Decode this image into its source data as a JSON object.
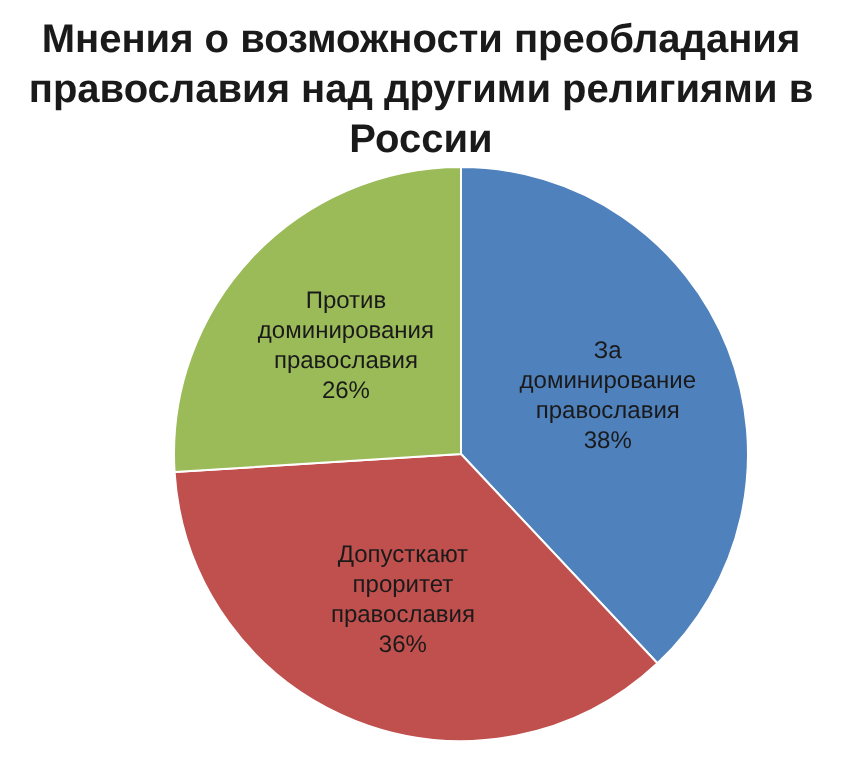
{
  "chart_data": {
    "type": "pie",
    "title": "Мнения о возможности преобладания православия над другими религиями в России",
    "categories": [
      "За доминирование православия",
      "Допусткают проритет православия",
      "Против доминирования православия"
    ],
    "values": [
      38,
      36,
      26
    ],
    "value_labels": [
      "38%",
      "36%",
      "26%"
    ],
    "colors": [
      "#4f81bd",
      "#c0504d",
      "#9bbb59"
    ],
    "legend": false
  }
}
